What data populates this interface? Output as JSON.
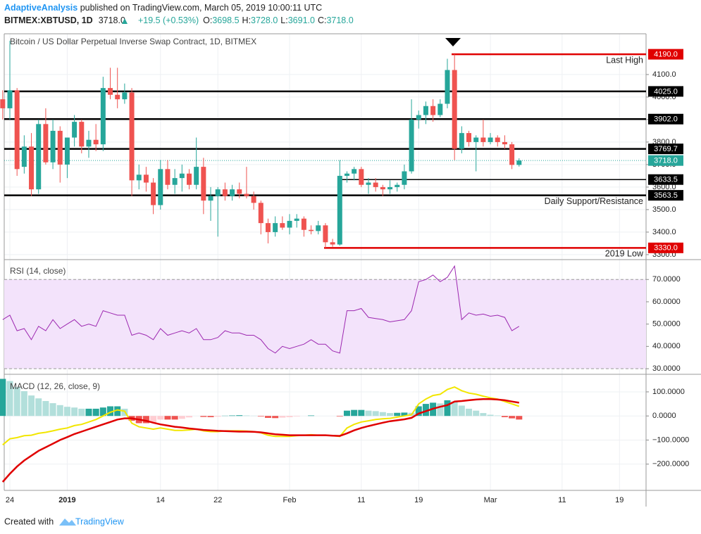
{
  "header": {
    "author": "AdaptiveAnalysis",
    "published": " published on TradingView.com, March 05, 2019 10:00:11 UTC",
    "symbol": "BITMEX:XBTUSD, 1D",
    "last": "3718.0",
    "change": "+19.5 (+0.53%)",
    "ohlc": [
      {
        "key": "O:",
        "value": "3698.5"
      },
      {
        "key": "H:",
        "value": "3728.0"
      },
      {
        "key": "L:",
        "value": "3691.0"
      },
      {
        "key": "C:",
        "value": "3718.0"
      }
    ]
  },
  "footer": {
    "created": "Created with",
    "brand": "TradingView"
  },
  "chart_data": {
    "type": "candlestick",
    "title": "Bitcoin / US Dollar Perpetual Inverse Swap Contract, 1D, BITMEX",
    "categories": [
      null,
      "24",
      null,
      null,
      null,
      null,
      null,
      null,
      null,
      "2019",
      null,
      null,
      null,
      null,
      null,
      null,
      null,
      null,
      null,
      null,
      null,
      null,
      "14",
      null,
      null,
      null,
      null,
      null,
      null,
      null,
      "22",
      null,
      null,
      null,
      null,
      null,
      null,
      null,
      null,
      null,
      "Feb",
      null,
      null,
      null,
      null,
      null,
      null,
      null,
      null,
      null,
      "11",
      null,
      null,
      null,
      null,
      null,
      null,
      null,
      "19",
      null,
      null,
      null,
      null,
      null,
      null,
      null,
      null,
      null,
      "Mar",
      null,
      null,
      null,
      null,
      null,
      null,
      null,
      null,
      null,
      "11",
      null,
      null,
      null,
      null,
      null,
      null,
      null,
      "19",
      null,
      null,
      null
    ],
    "open": [
      3990,
      3950,
      4030,
      3690,
      3780,
      3590,
      3880,
      3710,
      3850,
      3700,
      3820,
      3890,
      3780,
      3810,
      3790,
      4040,
      4010,
      3990,
      4020,
      3630,
      3655,
      3620,
      3520,
      3680,
      3610,
      3640,
      3660,
      3610,
      3690,
      3540,
      3560,
      3590,
      3560,
      3590,
      3570,
      3560,
      3530,
      3440,
      3400,
      3440,
      3420,
      3450,
      3460,
      3410,
      3405,
      3430,
      3355,
      3345,
      3650,
      3660,
      3680,
      3610,
      3620,
      3600,
      3590,
      3600,
      3610,
      3670,
      3900,
      3920,
      3960,
      3920,
      3970,
      4120,
      3770,
      3840,
      3800,
      3820,
      3800,
      3820,
      3800,
      3790,
      3698.5,
      null,
      null,
      null,
      null,
      null,
      null,
      null,
      null,
      null,
      null,
      null,
      null,
      null,
      null,
      null,
      null,
      null
    ],
    "high": [
      4030,
      4250,
      4040,
      3830,
      3840,
      3900,
      3950,
      3900,
      3870,
      3820,
      3920,
      3900,
      3850,
      3880,
      4090,
      4130,
      4130,
      4060,
      4040,
      3700,
      3690,
      3640,
      3720,
      3720,
      3680,
      3700,
      3680,
      3820,
      3730,
      3600,
      3600,
      3620,
      3610,
      3620,
      3690,
      3580,
      3540,
      3460,
      3470,
      3470,
      3480,
      3480,
      3470,
      3430,
      3450,
      3440,
      3370,
      3720,
      3670,
      3690,
      3690,
      3640,
      3640,
      3610,
      3630,
      3620,
      3700,
      3990,
      3940,
      3980,
      3990,
      3990,
      4170,
      4190,
      3870,
      3850,
      3830,
      3900,
      3840,
      3830,
      3830,
      3800,
      3728,
      null,
      null,
      null,
      null,
      null,
      null,
      null,
      null,
      null,
      null,
      null,
      null,
      null,
      null,
      null,
      null,
      null
    ],
    "low": [
      3900,
      3900,
      3650,
      3660,
      3560,
      3570,
      3700,
      3680,
      3620,
      3640,
      3780,
      3750,
      3730,
      3760,
      3760,
      3990,
      3950,
      3970,
      3560,
      3590,
      3580,
      3480,
      3500,
      3590,
      3570,
      3580,
      3590,
      3590,
      3480,
      3450,
      3380,
      3540,
      3540,
      3550,
      3550,
      3500,
      3390,
      3350,
      3380,
      3410,
      3390,
      3420,
      3380,
      3390,
      3390,
      3330,
      3335,
      3340,
      3620,
      3630,
      3600,
      3570,
      3580,
      3560,
      3570,
      3580,
      3590,
      3660,
      3860,
      3880,
      3890,
      3910,
      3950,
      3720,
      3750,
      3780,
      3670,
      3780,
      3790,
      3780,
      3770,
      3680,
      3691,
      null,
      null,
      null,
      null,
      null,
      null,
      null,
      null,
      null,
      null,
      null,
      null,
      null,
      null,
      null,
      null,
      null
    ],
    "close": [
      3950,
      4030,
      3680,
      3780,
      3590,
      3880,
      3710,
      3850,
      3700,
      3820,
      3890,
      3780,
      3810,
      3790,
      4040,
      4010,
      3990,
      4020,
      3630,
      3655,
      3620,
      3520,
      3680,
      3610,
      3640,
      3660,
      3610,
      3690,
      3540,
      3560,
      3590,
      3560,
      3590,
      3570,
      3560,
      3530,
      3440,
      3400,
      3440,
      3420,
      3450,
      3460,
      3410,
      3405,
      3430,
      3355,
      3345,
      3650,
      3660,
      3680,
      3610,
      3620,
      3600,
      3590,
      3600,
      3610,
      3670,
      3900,
      3920,
      3960,
      3920,
      3970,
      4120,
      3770,
      3840,
      3800,
      3820,
      3800,
      3820,
      3800,
      3790,
      3698.5,
      3718,
      null,
      null,
      null,
      null,
      null,
      null,
      null,
      null,
      null,
      null,
      null,
      null,
      null,
      null,
      null,
      null,
      null
    ],
    "up_color": "#26a69a",
    "down_color": "#ef5350",
    "ylim": [
      3281,
      4281
    ],
    "yticks": [
      {
        "value": 3300,
        "label": "3300.0"
      },
      {
        "value": 3400,
        "label": "3400.0"
      },
      {
        "value": 3500,
        "label": "3500.0"
      },
      {
        "value": 3600,
        "label": "3600.0"
      },
      {
        "value": 3700,
        "label": "3700.0"
      },
      {
        "value": 3800,
        "label": "3800.0"
      },
      {
        "value": 3900,
        "label": "3900.0"
      },
      {
        "value": 4000,
        "label": "4000.0"
      },
      {
        "value": 4100,
        "label": "4100.0"
      }
    ],
    "levels": [
      {
        "value": {
          "value": 4190,
          "label": "4190.0"
        },
        "color": "#e00000",
        "annotation": "Last High"
      },
      {
        "value": {
          "value": 4025,
          "label": "4025.0"
        },
        "color": "#000000"
      },
      {
        "value": {
          "value": 3902,
          "label": "3902.0"
        },
        "color": "#000000"
      },
      {
        "value": 3769.7,
        "color": "#000000"
      },
      {
        "value": 3633.5,
        "color": "#000000"
      },
      {
        "value": 3563.5,
        "color": "#000000",
        "annotation": "Daily Support/Resistance"
      },
      {
        "value": {
          "value": 3330,
          "label": "3330.0"
        },
        "color": "#e00000",
        "annotation": "2019 Low"
      }
    ],
    "current": {
      "value": {
        "value": 3718,
        "label": "3718.0"
      },
      "color": "#26a69a"
    },
    "rsi": {
      "title": "RSI (14, close)",
      "color": "#9c27b0",
      "band": [
        30,
        70
      ],
      "band_color": "#f3e3fb",
      "values": [
        52,
        54,
        47,
        48,
        43,
        49,
        47,
        52,
        48,
        50,
        52,
        49,
        50,
        49,
        56,
        55,
        54,
        54,
        45,
        46,
        45,
        43,
        48,
        45,
        46,
        47,
        46,
        48,
        43,
        43,
        44,
        47,
        46,
        46,
        45,
        45,
        43,
        39,
        37,
        40,
        39,
        40,
        41,
        43,
        41,
        41,
        38,
        37,
        56,
        56,
        57,
        53,
        52.5,
        52,
        51,
        51.5,
        52,
        56,
        69,
        70,
        72,
        69,
        71,
        76,
        52,
        55,
        54,
        54.5,
        53.5,
        54,
        53,
        47,
        49,
        null,
        null,
        null,
        null,
        null,
        null,
        null,
        null,
        null,
        null,
        null,
        null,
        null,
        null,
        null,
        null,
        null
      ],
      "ylim": [
        27.8,
        78.6
      ],
      "yticks": [
        {
          "value": 30,
          "label": "30.0000"
        },
        {
          "value": 40,
          "label": "40.0000"
        },
        {
          "value": 50,
          "label": "50.0000"
        },
        {
          "value": 60,
          "label": "60.0000"
        },
        {
          "value": 70,
          "label": "70.0000"
        }
      ]
    },
    "macd": {
      "title": "MACD (12, 26, close, 9)",
      "macd_color": "#f2e600",
      "signal_color": "#e00000",
      "hist_colors": [
        "#26a69a",
        "#b2dfdb",
        "#ef5350",
        "#ffcdd2"
      ],
      "macd": [
        -120,
        -95,
        -90,
        -82,
        -80,
        -72,
        -68,
        -62,
        -55,
        -50,
        -40,
        -35,
        -25,
        -15,
        0,
        15,
        25,
        20,
        -30,
        -45,
        -50,
        -55,
        -50,
        -55,
        -60,
        -60,
        -58,
        -55,
        -62,
        -65,
        -65,
        -62,
        -62,
        -62,
        -63,
        -65,
        -70,
        -80,
        -85,
        -85,
        -85,
        -82,
        -80,
        -78,
        -80,
        -80,
        -82,
        -85,
        -50,
        -35,
        -25,
        -20,
        -15,
        -12,
        -10,
        -5,
        0,
        5,
        50,
        70,
        85,
        90,
        110,
        120,
        105,
        95,
        90,
        82,
        75,
        70,
        60,
        50,
        40,
        null,
        null,
        null,
        null,
        null,
        null,
        null,
        null,
        null,
        null,
        null,
        null,
        null,
        null,
        null,
        null,
        null
      ],
      "signal": [
        -274,
        -240,
        -210,
        -185,
        -165,
        -145,
        -130,
        -115,
        -100,
        -88,
        -75,
        -65,
        -55,
        -45,
        -35,
        -25,
        -15,
        -10,
        -10,
        -15,
        -20,
        -28,
        -35,
        -40,
        -45,
        -48,
        -52,
        -55,
        -58,
        -60,
        -62,
        -63,
        -64,
        -65,
        -65,
        -66,
        -68,
        -72,
        -76,
        -78,
        -80,
        -80,
        -80,
        -80,
        -80,
        -80,
        -82,
        -83,
        -72,
        -60,
        -50,
        -42,
        -35,
        -28,
        -22,
        -18,
        -14,
        -8,
        10,
        20,
        30,
        38,
        45,
        60,
        62,
        65,
        68,
        70,
        70,
        68,
        65,
        60,
        55,
        null,
        null,
        null,
        null,
        null,
        null,
        null,
        null,
        null,
        null,
        null,
        null,
        null,
        null,
        null,
        null,
        null
      ],
      "histogram": [
        154,
        145,
        120,
        103,
        85,
        73,
        62,
        53,
        45,
        38,
        35,
        30,
        30,
        30,
        35,
        40,
        40,
        30,
        -20,
        -30,
        -30,
        -27,
        -15,
        -15,
        -15,
        -12,
        -6,
        0,
        -4,
        -5,
        -3,
        1,
        2,
        3,
        2,
        1,
        -2,
        -8,
        -9,
        -7,
        -5,
        -2,
        0,
        2,
        0,
        0,
        0,
        -2,
        22,
        25,
        25,
        22,
        20,
        16,
        12,
        13,
        14,
        13,
        40,
        50,
        55,
        52,
        65,
        60,
        43,
        30,
        22,
        12,
        5,
        2,
        -5,
        -10,
        -15,
        null,
        null,
        null,
        null,
        null,
        null,
        null,
        null,
        null,
        null,
        null,
        null,
        null,
        null,
        null,
        null,
        null
      ],
      "ylim": [
        -309,
        170
      ],
      "yticks": [
        {
          "value": -200,
          "label": "−200.0000"
        },
        {
          "value": -100,
          "label": "−100.0000"
        },
        {
          "value": 0,
          "label": "0.0000"
        },
        {
          "value": 100,
          "label": "100.0000"
        }
      ]
    }
  }
}
